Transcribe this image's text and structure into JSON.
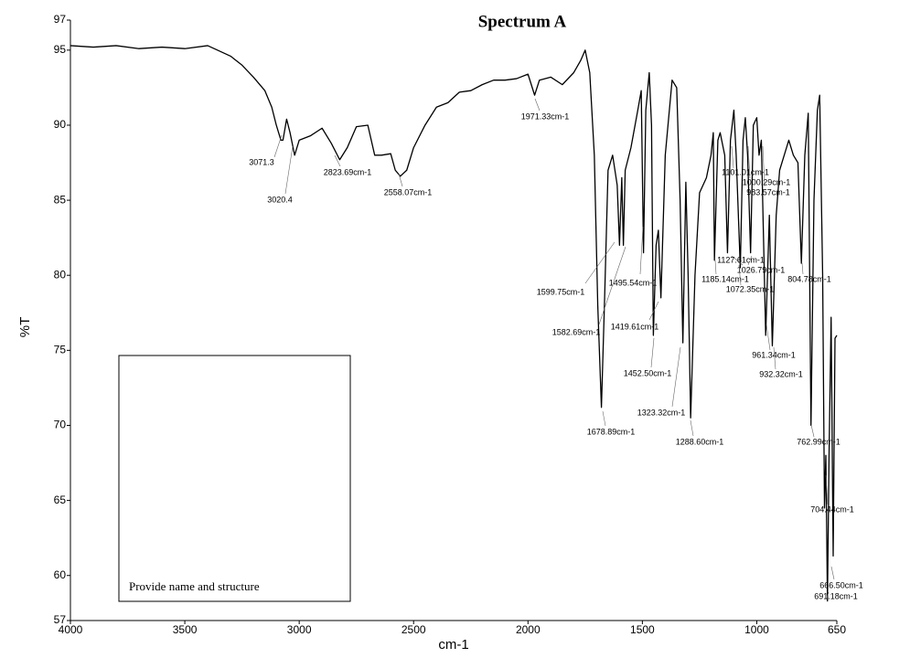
{
  "chart_data": {
    "type": "line",
    "title": "Spectrum A",
    "x_label": "cm-1",
    "y_label": "%T",
    "note": "Provide name and structure",
    "xlim": [
      4000,
      650
    ],
    "ylim": [
      57,
      97
    ],
    "xticks": [
      4000,
      3500,
      3000,
      2500,
      2000,
      1500,
      1000,
      650
    ],
    "yticks": [
      57,
      60,
      65,
      70,
      75,
      80,
      85,
      90,
      95,
      97
    ],
    "grid": false,
    "x": [
      4000,
      3900,
      3800,
      3700,
      3600,
      3500,
      3400,
      3300,
      3250,
      3200,
      3150,
      3120,
      3100,
      3080,
      3071,
      3055,
      3040,
      3020,
      3000,
      2950,
      2900,
      2860,
      2823,
      2790,
      2750,
      2700,
      2670,
      2640,
      2600,
      2580,
      2558,
      2530,
      2500,
      2450,
      2400,
      2350,
      2300,
      2250,
      2200,
      2150,
      2100,
      2050,
      2000,
      1971,
      1950,
      1900,
      1850,
      1800,
      1770,
      1750,
      1730,
      1710,
      1695,
      1679,
      1665,
      1650,
      1630,
      1610,
      1600,
      1590,
      1583,
      1575,
      1550,
      1520,
      1505,
      1495,
      1485,
      1470,
      1460,
      1452,
      1440,
      1430,
      1419,
      1400,
      1370,
      1350,
      1335,
      1323,
      1310,
      1300,
      1289,
      1270,
      1250,
      1220,
      1200,
      1190,
      1185,
      1170,
      1160,
      1140,
      1128,
      1115,
      1100,
      1090,
      1072,
      1060,
      1050,
      1040,
      1027,
      1015,
      1000,
      990,
      980,
      961,
      945,
      932,
      915,
      900,
      880,
      860,
      840,
      820,
      805,
      790,
      775,
      763,
      750,
      735,
      725,
      712,
      704,
      698,
      691,
      684,
      675,
      666,
      658,
      650
    ],
    "series": [
      {
        "name": "%T",
        "color": "#000000",
        "values": [
          95.3,
          95.2,
          95.3,
          95.1,
          95.2,
          95.1,
          95.3,
          94.6,
          94.0,
          93.2,
          92.3,
          91.2,
          90.0,
          89.0,
          89.0,
          90.4,
          89.5,
          88.0,
          89.0,
          89.3,
          89.8,
          88.8,
          87.7,
          88.5,
          89.9,
          90.0,
          88.0,
          88.0,
          88.1,
          87.0,
          86.6,
          87.0,
          88.5,
          90.0,
          91.2,
          91.5,
          92.2,
          92.3,
          92.7,
          93.0,
          93.0,
          93.1,
          93.4,
          92.0,
          93.0,
          93.2,
          92.7,
          93.5,
          94.3,
          95.0,
          93.5,
          88.0,
          78.0,
          71.2,
          78.5,
          87.0,
          88.0,
          86.0,
          82.0,
          86.5,
          82.0,
          87.0,
          88.5,
          91.0,
          92.3,
          81.5,
          91.0,
          93.5,
          90.0,
          76.0,
          82.0,
          83.0,
          78.5,
          88.0,
          93.0,
          92.5,
          85.0,
          75.5,
          86.2,
          80.0,
          70.5,
          80.0,
          85.5,
          86.5,
          88.0,
          89.5,
          81.0,
          89.0,
          89.5,
          88.0,
          81.5,
          89.0,
          91.0,
          88.0,
          80.5,
          89.0,
          90.5,
          88.0,
          81.5,
          90.0,
          90.5,
          88.0,
          89.0,
          76.0,
          84.0,
          75.3,
          84.0,
          87.0,
          88.0,
          89.0,
          88.0,
          87.5,
          80.8,
          88.0,
          90.8,
          70.0,
          85.0,
          91.0,
          92.0,
          80.0,
          64.5,
          68.0,
          58.3,
          68.0,
          77.2,
          61.3,
          75.8,
          76.0
        ]
      }
    ],
    "annotations": [
      "3071.3",
      "3020.4",
      "2823.69cm-1",
      "2558.07cm-1",
      "1971.33cm-1",
      "1101.01cm-1",
      "1000.29cm-1",
      "983.57cm-1",
      "1127.61cm-1",
      "1026.79cm-1",
      "1185.14cm-1",
      "804.78cm-1",
      "1072.35cm-1",
      "1599.75cm-1",
      "1495.54cm-1",
      "1582.69cm-1",
      "1419.61cm-1",
      "961.34cm-1",
      "932.32cm-1",
      "1452.50cm-1",
      "1323.32cm-1",
      "1678.89cm-1",
      "1288.60cm-1",
      "762.99cm-1",
      "704.44cm-1",
      "666.50cm-1",
      "691.18cm-1"
    ]
  }
}
